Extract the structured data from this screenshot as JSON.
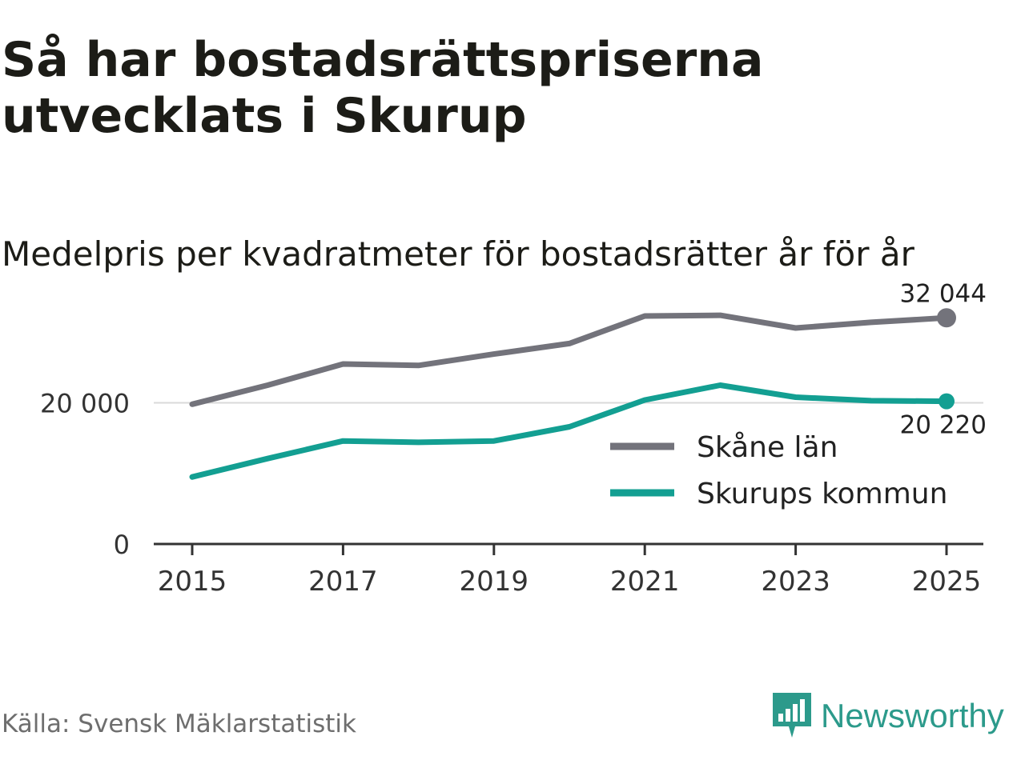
{
  "title": "Så har bostadsrättspriserna utvecklats i Skurup",
  "subtitle": "Medelpris per kvadratmeter för bostadsrätter år för år",
  "source": "Källa: Svensk Mäklarstatistik",
  "brand": {
    "name": "Newsworthy",
    "icon": "newsworthy-chat-bars-icon",
    "color": "#2c9a8b"
  },
  "chart_data": {
    "type": "line",
    "title": "Så har bostadsrättspriserna utvecklats i Skurup",
    "subtitle": "Medelpris per kvadratmeter för bostadsrätter år för år",
    "xlabel": "",
    "ylabel": "",
    "x": [
      2015,
      2016,
      2017,
      2018,
      2019,
      2020,
      2021,
      2022,
      2023,
      2024,
      2025
    ],
    "x_ticks": [
      "2015",
      "2017",
      "2019",
      "2021",
      "2023",
      "2025"
    ],
    "x_tick_values": [
      2015,
      2017,
      2019,
      2021,
      2023,
      2025
    ],
    "y_ticks": [
      "0",
      "20 000"
    ],
    "y_tick_values": [
      0,
      20000
    ],
    "ylim": [
      0,
      34000
    ],
    "grid": true,
    "legend_position": "right",
    "series": [
      {
        "name": "Skåne län",
        "color": "#73737b",
        "values": [
          19800,
          22500,
          25500,
          25300,
          26900,
          28400,
          32300,
          32400,
          30600,
          31400,
          32044
        ],
        "end_label": "32 044"
      },
      {
        "name": "Skurups kommun",
        "color": "#139f92",
        "values": [
          9500,
          12100,
          14600,
          14400,
          14600,
          16600,
          20400,
          22500,
          20800,
          20300,
          20220
        ],
        "end_label": "20 220"
      }
    ]
  }
}
